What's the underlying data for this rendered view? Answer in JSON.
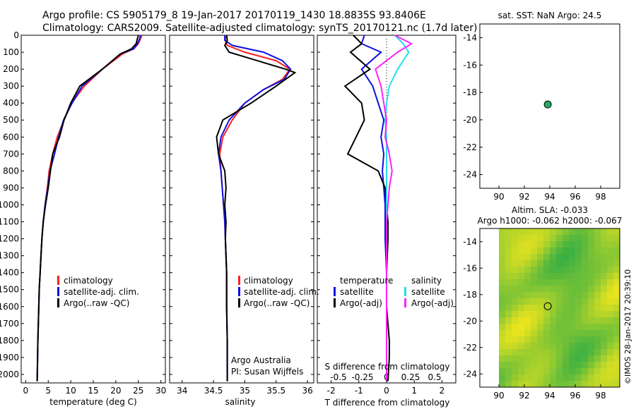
{
  "header": {
    "line1": "Argo profile: CS 5905179_8 19-Jan-2017 20170119_1430 18.8835S 93.8406E",
    "line2": "Climatology: CARS2009. Satellite-adjusted climatology: synTS_20170121.nc (1.7d later)"
  },
  "colors": {
    "climatology": "#ff2020",
    "satellite": "#1010e0",
    "argo": "#000000",
    "sal_satellite": "#20e0f0",
    "sal_argo": "#ff20ff",
    "marker": "#20b060"
  },
  "depth_axis": {
    "min": 0,
    "max": 2050,
    "ticks": [
      0,
      100,
      200,
      300,
      400,
      500,
      600,
      700,
      800,
      900,
      1000,
      1100,
      1200,
      1300,
      1400,
      1500,
      1600,
      1700,
      1800,
      1900,
      2000
    ]
  },
  "chart_data": [
    {
      "type": "line",
      "xlabel": "temperature (deg C)",
      "xlim": [
        -1,
        31
      ],
      "xticks": [
        0,
        5,
        10,
        15,
        20,
        25,
        30
      ],
      "legend": [
        "climatology",
        "satellite-adj. clim.",
        "Argo(..raw -QC)"
      ],
      "series": [
        {
          "name": "climatology",
          "color": "#ff2020",
          "x": [
            25.8,
            25.5,
            25.0,
            24.0,
            21.5,
            17.0,
            13.0,
            10.2,
            8.5,
            7.0,
            6.0,
            5.2,
            4.8,
            4.3,
            3.9,
            3.6,
            3.4,
            3.2,
            3.0,
            2.9,
            2.7,
            2.55
          ],
          "y": [
            0,
            20,
            50,
            80,
            110,
            200,
            300,
            400,
            500,
            600,
            700,
            800,
            900,
            1000,
            1100,
            1200,
            1300,
            1400,
            1500,
            1600,
            1800,
            2040
          ]
        },
        {
          "name": "satellite-adj. clim.",
          "color": "#1010e0",
          "x": [
            25.5,
            25.3,
            24.8,
            24.0,
            21.0,
            17.0,
            12.5,
            10.3,
            8.4,
            7.3,
            6.4,
            5.4,
            4.9,
            4.3,
            3.9,
            3.6,
            3.4,
            3.2,
            3.0,
            2.9,
            2.7,
            2.55
          ],
          "y": [
            0,
            20,
            50,
            80,
            110,
            200,
            300,
            400,
            500,
            600,
            700,
            800,
            900,
            1000,
            1100,
            1200,
            1300,
            1400,
            1500,
            1600,
            1800,
            2040
          ]
        },
        {
          "name": "Argo(..raw -QC)",
          "color": "#000000",
          "x": [
            25.0,
            24.8,
            24.5,
            23.5,
            21.0,
            17.0,
            12.0,
            10.0,
            8.5,
            7.5,
            6.0,
            5.5,
            5.0,
            4.4,
            3.9,
            3.6,
            3.4,
            3.2,
            3.0,
            2.9,
            2.7,
            2.55
          ],
          "y": [
            0,
            20,
            50,
            80,
            110,
            200,
            300,
            400,
            500,
            600,
            700,
            800,
            900,
            1000,
            1100,
            1200,
            1300,
            1400,
            1500,
            1600,
            1800,
            2040
          ]
        }
      ]
    },
    {
      "type": "line",
      "xlabel": "salinity",
      "xlim": [
        33.8,
        36.1
      ],
      "xticks": [
        34,
        34.5,
        35,
        35.5,
        36
      ],
      "legend": [
        "climatology",
        "satellite-adj. clim.",
        "Argo(..raw -QC)"
      ],
      "annotation": [
        "Argo Australia",
        "PI: Susan Wijffels"
      ],
      "series": [
        {
          "name": "climatology",
          "color": "#ff2020",
          "x": [
            34.69,
            34.69,
            34.72,
            35.0,
            35.5,
            35.72,
            35.6,
            35.3,
            35.0,
            34.8,
            34.65,
            34.6,
            34.62,
            34.64,
            34.66,
            34.68,
            34.69,
            34.7,
            34.71,
            34.71,
            34.72,
            34.72
          ],
          "y": [
            0,
            30,
            60,
            100,
            150,
            200,
            260,
            320,
            400,
            500,
            600,
            700,
            800,
            900,
            1000,
            1100,
            1200,
            1300,
            1400,
            1600,
            1800,
            2040
          ]
        },
        {
          "name": "satellite-adj. clim.",
          "color": "#1010e0",
          "x": [
            34.68,
            34.68,
            34.8,
            35.3,
            35.6,
            35.73,
            35.63,
            35.3,
            35.0,
            34.75,
            34.62,
            34.58,
            34.62,
            34.64,
            34.66,
            34.68,
            34.69,
            34.7,
            34.71,
            34.71,
            34.72,
            34.72
          ],
          "y": [
            0,
            30,
            60,
            100,
            150,
            200,
            260,
            320,
            400,
            500,
            600,
            700,
            800,
            900,
            1000,
            1100,
            1200,
            1300,
            1400,
            1600,
            1800,
            2040
          ]
        },
        {
          "name": "Argo(..raw -QC)",
          "color": "#000000",
          "x": [
            34.71,
            34.72,
            34.68,
            34.75,
            35.2,
            35.65,
            35.8,
            35.5,
            35.1,
            34.65,
            34.55,
            34.58,
            34.68,
            34.7,
            34.68,
            34.7,
            34.69,
            34.7,
            34.71,
            34.71,
            34.72,
            34.72
          ],
          "y": [
            0,
            30,
            60,
            100,
            150,
            200,
            220,
            300,
            400,
            500,
            600,
            700,
            800,
            900,
            1000,
            1100,
            1200,
            1300,
            1400,
            1600,
            1800,
            2040
          ]
        }
      ]
    },
    {
      "type": "line",
      "xlabel_top": "S difference from climatology",
      "xlabel": "T difference from climatology",
      "xlim": [
        -2.5,
        2.5
      ],
      "xticks_T": [
        -2,
        -1,
        0,
        1,
        2
      ],
      "xticks_S": [
        -0.5,
        -0.25,
        0,
        0.25,
        0.5
      ],
      "legend_temperature": {
        "title": "temperature",
        "items": [
          "satellite",
          "Argo(-adj)"
        ]
      },
      "legend_salinity": {
        "title": "salinity",
        "items": [
          "satellite",
          "Argo(-adj)"
        ]
      },
      "series": [
        {
          "name": "temperature satellite",
          "color": "#1010e0",
          "x": [
            -0.8,
            -0.9,
            -0.2,
            -0.9,
            -0.5,
            -0.3,
            -0.1,
            -0.2,
            -0.1,
            -0.15,
            -0.1,
            -0.05,
            -0.05,
            -0.05,
            0,
            0,
            0,
            0,
            0
          ],
          "y": [
            0,
            50,
            100,
            200,
            300,
            400,
            500,
            600,
            700,
            800,
            900,
            1000,
            1100,
            1200,
            1400,
            1600,
            1800,
            1900,
            2040
          ]
        },
        {
          "name": "temperature Argo(-adj)",
          "color": "#000000",
          "x": [
            -1.2,
            -0.9,
            -1.3,
            -0.6,
            -1.5,
            -0.9,
            -0.8,
            -1.1,
            -1.4,
            -0.3,
            -0.05,
            0,
            0.05,
            0.05,
            0,
            0,
            0.1,
            0.1,
            0.05
          ],
          "y": [
            0,
            50,
            100,
            200,
            300,
            400,
            500,
            600,
            700,
            800,
            900,
            1000,
            1100,
            1200,
            1400,
            1600,
            1800,
            1900,
            2040
          ]
        },
        {
          "name": "salinity satellite",
          "color": "#20e0f0",
          "x": [
            0.3,
            0.6,
            0.8,
            0.4,
            0.1,
            0,
            -0.05,
            0,
            0,
            0,
            0,
            0,
            0,
            0,
            0,
            0,
            0,
            0,
            0
          ],
          "y": [
            0,
            50,
            100,
            200,
            300,
            400,
            500,
            600,
            700,
            800,
            900,
            1000,
            1100,
            1200,
            1400,
            1600,
            1800,
            1900,
            2040
          ]
        },
        {
          "name": "salinity Argo(-adj)",
          "color": "#ff20ff",
          "x": [
            0.3,
            0.9,
            0.4,
            -0.4,
            -0.2,
            -0.1,
            0,
            -0.05,
            0.1,
            0.2,
            0.1,
            0.05,
            0,
            0,
            0,
            0,
            0,
            0,
            0
          ],
          "y": [
            0,
            50,
            100,
            200,
            300,
            400,
            500,
            600,
            700,
            800,
            900,
            1000,
            1100,
            1200,
            1400,
            1600,
            1800,
            1900,
            2040
          ]
        }
      ]
    }
  ],
  "maps": {
    "sst": {
      "title": "sat. SST: NaN Argo: 24.5",
      "xlim": [
        88.5,
        99.5
      ],
      "ylim": [
        -25,
        -13
      ],
      "xticks": [
        90,
        92,
        94,
        96,
        98
      ],
      "yticks": [
        -14,
        -16,
        -18,
        -20,
        -22,
        -24
      ],
      "marker": {
        "lon": 93.84,
        "lat": -18.88
      }
    },
    "sla": {
      "title1": "Altim. SLA: -0.033",
      "title2": "Argo h1000: -0.062 h2000: -0.067",
      "xlim": [
        88.5,
        99.5
      ],
      "ylim": [
        -25,
        -13
      ],
      "xticks": [
        90,
        92,
        94,
        96,
        98
      ],
      "yticks": [
        -14,
        -16,
        -18,
        -20,
        -22,
        -24
      ],
      "marker": {
        "lon": 93.84,
        "lat": -18.88
      }
    }
  },
  "footer": {
    "stamp": "©IMOS 28-Jan-2017 20:39:10"
  }
}
